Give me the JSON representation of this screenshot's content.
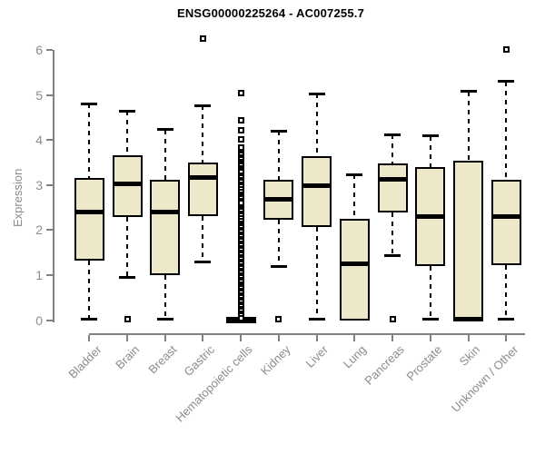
{
  "title": "ENSG00000225264 - AC007255.7",
  "colors": {
    "box_fill": "#ece8c9",
    "box_border": "#000000",
    "axis": "#808080",
    "tick_text": "#8c8c8c",
    "title_text": "#000000",
    "background": "#ffffff"
  },
  "chart_data": {
    "type": "boxplot",
    "title": "ENSG00000225264 - AC007255.7",
    "xlabel": "",
    "ylabel": "Expression",
    "ylim": [
      0,
      6
    ],
    "yticks": [
      0,
      1,
      2,
      3,
      4,
      5,
      6
    ],
    "grid": false,
    "legend": "none",
    "categories": [
      "Bladder",
      "Brain",
      "Breast",
      "Gastric",
      "Hematopoietic cells",
      "Kidney",
      "Liver",
      "Lung",
      "Pancreas",
      "Prostate",
      "Skin",
      "Unknown / Other"
    ],
    "series": [
      {
        "name": "Bladder",
        "whisker_low": 0.02,
        "q1": 1.33,
        "median": 2.41,
        "q3": 3.15,
        "whisker_high": 4.81,
        "outliers": []
      },
      {
        "name": "Brain",
        "whisker_low": 0.95,
        "q1": 2.29,
        "median": 3.02,
        "q3": 3.66,
        "whisker_high": 4.64,
        "outliers": [
          0.02
        ]
      },
      {
        "name": "Breast",
        "whisker_low": 0.02,
        "q1": 1.01,
        "median": 2.41,
        "q3": 3.11,
        "whisker_high": 4.23,
        "outliers": []
      },
      {
        "name": "Gastric",
        "whisker_low": 1.3,
        "q1": 2.31,
        "median": 3.16,
        "q3": 3.5,
        "whisker_high": 4.77,
        "outliers": [
          6.25
        ]
      },
      {
        "name": "Hematopoietic cells",
        "whisker_low": 0.0,
        "q1": 0.0,
        "median": 0.0,
        "q3": 0.0,
        "whisker_high": 0.0,
        "outliers": [
          5.04,
          4.44,
          4.22,
          4.01,
          3.83,
          3.72,
          3.67,
          3.62,
          3.57,
          3.52,
          3.47,
          3.42,
          3.37,
          3.32,
          3.28,
          3.21,
          3.16,
          3.11,
          3.06,
          3.01,
          2.96,
          2.91,
          2.84,
          2.79,
          2.74,
          2.7,
          2.65,
          2.61,
          2.47,
          2.42,
          2.37,
          2.32,
          2.27,
          2.2,
          2.15,
          2.1,
          2.05,
          2.0,
          1.95,
          1.9,
          1.85,
          1.8,
          1.75,
          1.7,
          1.65,
          1.6,
          1.55,
          1.5,
          1.45,
          1.4,
          1.35,
          1.3,
          1.25,
          1.2,
          1.15,
          1.1,
          1.05,
          1.0,
          0.95,
          0.9,
          0.85,
          0.8,
          0.75,
          0.7,
          0.65,
          0.6,
          0.55,
          0.5,
          0.45,
          0.4,
          0.35,
          0.3,
          0.25,
          0.2,
          0.15,
          0.1,
          0.05
        ]
      },
      {
        "name": "Kidney",
        "whisker_low": 1.2,
        "q1": 2.23,
        "median": 2.69,
        "q3": 3.12,
        "whisker_high": 4.2,
        "outliers": [
          0.02
        ]
      },
      {
        "name": "Liver",
        "whisker_low": 0.02,
        "q1": 2.06,
        "median": 2.98,
        "q3": 3.65,
        "whisker_high": 5.03,
        "outliers": []
      },
      {
        "name": "Lung",
        "whisker_low": 0.0,
        "q1": 0.0,
        "median": 1.26,
        "q3": 2.25,
        "whisker_high": 3.23,
        "outliers": []
      },
      {
        "name": "Pancreas",
        "whisker_low": 1.43,
        "q1": 2.39,
        "median": 3.13,
        "q3": 3.48,
        "whisker_high": 4.12,
        "outliers": [
          0.02
        ]
      },
      {
        "name": "Prostate",
        "whisker_low": 0.02,
        "q1": 1.2,
        "median": 2.31,
        "q3": 3.4,
        "whisker_high": 4.09,
        "outliers": []
      },
      {
        "name": "Skin",
        "whisker_low": 0.0,
        "q1": 0.0,
        "median": 0.03,
        "q3": 3.54,
        "whisker_high": 5.08,
        "outliers": []
      },
      {
        "name": "Unknown / Other",
        "whisker_low": 0.02,
        "q1": 1.22,
        "median": 2.31,
        "q3": 3.12,
        "whisker_high": 5.3,
        "outliers": [
          6.0
        ]
      }
    ]
  }
}
